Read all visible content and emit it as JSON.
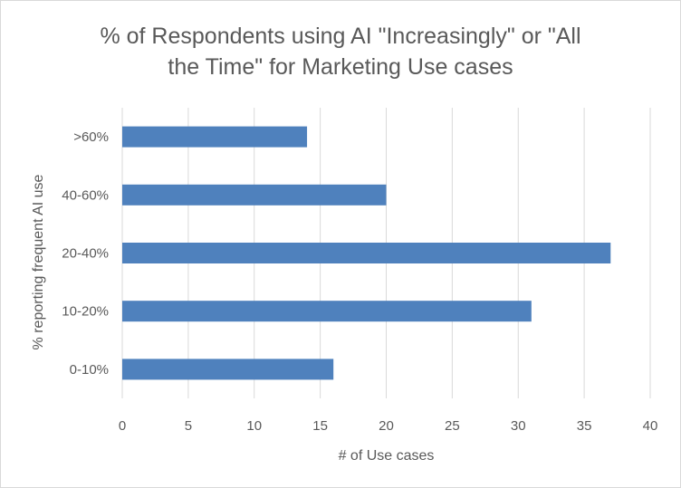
{
  "chart_data": {
    "type": "bar",
    "orientation": "horizontal",
    "title_lines": [
      "% of Respondents using AI \"Increasingly\" or \"All",
      "the Time\" for Marketing Use cases"
    ],
    "categories": [
      "0-10%",
      "10-20%",
      "20-40%",
      "40-60%",
      ">60%"
    ],
    "values": [
      16,
      31,
      37,
      20,
      14
    ],
    "xlabel": "# of Use cases",
    "ylabel": "% reporting frequent AI use",
    "xlim": [
      0,
      40
    ],
    "x_ticks": [
      0,
      5,
      10,
      15,
      20,
      25,
      30,
      35,
      40
    ],
    "grid": "vertical",
    "legend": "none",
    "bar_color": "#4f81bd",
    "grid_color": "#d9d9d9"
  }
}
